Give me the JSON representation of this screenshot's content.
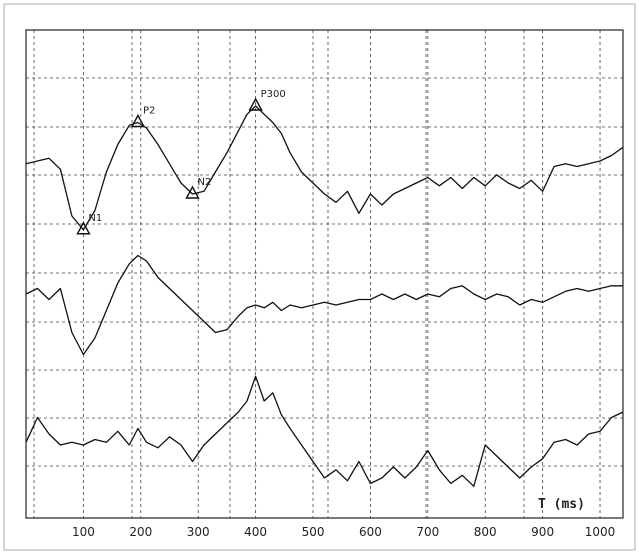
{
  "chart_data": {
    "type": "line",
    "title": "",
    "xlabel": "T (ms)",
    "ylabel": "",
    "xlim": [
      0,
      1040
    ],
    "xticks": [
      100,
      200,
      300,
      400,
      500,
      600,
      700,
      800,
      900,
      1000
    ],
    "grid": true,
    "series": [
      {
        "x": [
          0,
          20,
          40,
          60,
          80,
          100,
          120,
          140,
          160,
          180,
          195,
          210,
          230,
          250,
          270,
          290,
          310,
          330,
          350,
          370,
          385,
          400,
          415,
          430,
          445,
          460,
          480,
          500,
          520,
          540,
          560,
          580,
          600,
          620,
          640,
          660,
          680,
          700,
          720,
          740,
          760,
          780,
          800,
          820,
          840,
          860,
          880,
          900,
          920,
          940,
          960,
          980,
          1000,
          1020,
          1040
        ],
        "y": [
          0.35,
          0.4,
          0.45,
          0.25,
          -0.6,
          -0.85,
          -0.5,
          0.2,
          0.7,
          1.05,
          1.1,
          1.0,
          0.7,
          0.35,
          0.0,
          -0.2,
          -0.15,
          0.2,
          0.55,
          0.95,
          1.25,
          1.4,
          1.25,
          1.1,
          0.9,
          0.55,
          0.2,
          0.0,
          -0.2,
          -0.35,
          -0.15,
          -0.55,
          -0.2,
          -0.4,
          -0.2,
          -0.1,
          0.0,
          0.1,
          -0.05,
          0.1,
          -0.1,
          0.1,
          -0.05,
          0.15,
          0.0,
          -0.1,
          0.05,
          -0.15,
          0.3,
          0.35,
          0.3,
          0.35,
          0.4,
          0.5,
          0.65
        ]
      },
      {
        "x": [
          0,
          20,
          40,
          60,
          80,
          100,
          120,
          140,
          160,
          180,
          195,
          210,
          230,
          250,
          270,
          290,
          310,
          330,
          350,
          370,
          385,
          400,
          415,
          430,
          445,
          460,
          480,
          500,
          520,
          540,
          560,
          580,
          600,
          620,
          640,
          660,
          680,
          700,
          720,
          740,
          760,
          780,
          800,
          820,
          840,
          860,
          880,
          900,
          920,
          940,
          960,
          980,
          1000,
          1020,
          1040
        ],
        "y": [
          0.2,
          0.3,
          0.1,
          0.3,
          -0.5,
          -0.9,
          -0.6,
          -0.1,
          0.4,
          0.75,
          0.9,
          0.8,
          0.5,
          0.3,
          0.1,
          -0.1,
          -0.3,
          -0.5,
          -0.45,
          -0.2,
          -0.05,
          0.0,
          -0.05,
          0.05,
          -0.1,
          0.0,
          -0.05,
          0.0,
          0.05,
          0.0,
          0.05,
          0.1,
          0.1,
          0.2,
          0.1,
          0.2,
          0.1,
          0.2,
          0.15,
          0.3,
          0.35,
          0.2,
          0.1,
          0.2,
          0.15,
          0.0,
          0.1,
          0.05,
          0.15,
          0.25,
          0.3,
          0.25,
          0.3,
          0.35,
          0.35
        ]
      },
      {
        "x": [
          0,
          20,
          40,
          60,
          80,
          100,
          120,
          140,
          160,
          180,
          195,
          210,
          230,
          250,
          270,
          290,
          310,
          330,
          350,
          370,
          385,
          400,
          415,
          430,
          445,
          460,
          480,
          500,
          520,
          540,
          560,
          580,
          600,
          620,
          640,
          660,
          680,
          700,
          720,
          740,
          760,
          780,
          800,
          820,
          840,
          860,
          880,
          900,
          920,
          940,
          960,
          980,
          1000,
          1020,
          1040
        ],
        "y": [
          0.05,
          0.5,
          0.2,
          0.0,
          0.05,
          0.0,
          0.1,
          0.05,
          0.25,
          0.0,
          0.3,
          0.05,
          -0.05,
          0.15,
          0.0,
          -0.3,
          0.0,
          0.2,
          0.4,
          0.6,
          0.8,
          1.25,
          0.8,
          0.95,
          0.55,
          0.3,
          0.0,
          -0.3,
          -0.6,
          -0.45,
          -0.65,
          -0.3,
          -0.7,
          -0.6,
          -0.4,
          -0.6,
          -0.4,
          -0.1,
          -0.45,
          -0.7,
          -0.55,
          -0.75,
          0.0,
          -0.2,
          -0.4,
          -0.6,
          -0.4,
          -0.25,
          0.05,
          0.1,
          0.0,
          0.2,
          0.25,
          0.5,
          0.6
        ]
      }
    ],
    "annotations": [
      {
        "label": "N1",
        "series": 0,
        "x": 100
      },
      {
        "label": "P2",
        "series": 0,
        "x": 195
      },
      {
        "label": "N2",
        "series": 0,
        "x": 290
      },
      {
        "label": "P300",
        "series": 0,
        "x": 400
      }
    ]
  }
}
